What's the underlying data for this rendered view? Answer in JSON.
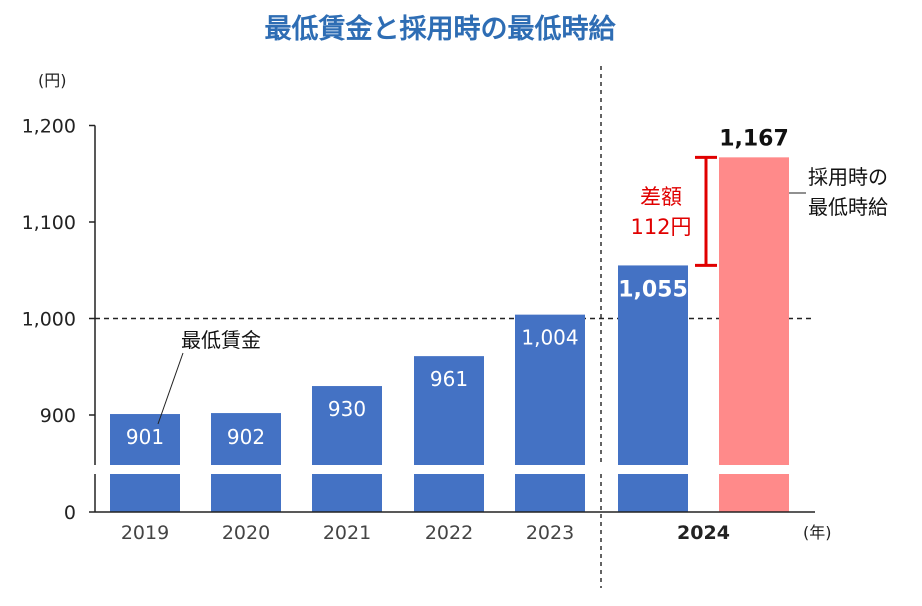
{
  "chart_data": {
    "type": "bar",
    "title": "最低賃金と採用時の最低時給",
    "y_unit": "(円)",
    "x_unit": "(年)",
    "ylim": [
      850,
      1200
    ],
    "broken_axis_zero_label": "0",
    "yticks": [
      {
        "value": 900,
        "label": "900"
      },
      {
        "value": 1000,
        "label": "1,000"
      },
      {
        "value": 1100,
        "label": "1,100"
      },
      {
        "value": 1200,
        "label": "1,200"
      }
    ],
    "reference_line": 1000,
    "bars": [
      {
        "category": "2019",
        "series": "最低賃金",
        "value": 901,
        "label": "901"
      },
      {
        "category": "2020",
        "series": "最低賃金",
        "value": 902,
        "label": "902"
      },
      {
        "category": "2021",
        "series": "最低賃金",
        "value": 930,
        "label": "930"
      },
      {
        "category": "2022",
        "series": "最低賃金",
        "value": 961,
        "label": "961"
      },
      {
        "category": "2023",
        "series": "最低賃金",
        "value": 1004,
        "label": "1,004"
      },
      {
        "category": "2024",
        "series": "最低賃金",
        "value": 1055,
        "label": "1,055"
      },
      {
        "category": "2024",
        "series": "採用時の最低時給",
        "value": 1167,
        "label": "1,167"
      }
    ],
    "categories": [
      "2019",
      "2020",
      "2021",
      "2022",
      "2023",
      "2024"
    ],
    "series": [
      {
        "name": "最低賃金",
        "color": "#4472c4"
      },
      {
        "name": "採用時の最低時給",
        "color": "#ff8a8a"
      }
    ],
    "annotations": {
      "min_wage": "最低賃金",
      "hire_line1": "採用時の",
      "hire_line2": "最低時給",
      "diff_line1": "差額",
      "diff_line2": "112円",
      "diff_value": 112,
      "diff_color": "#e00000"
    }
  }
}
